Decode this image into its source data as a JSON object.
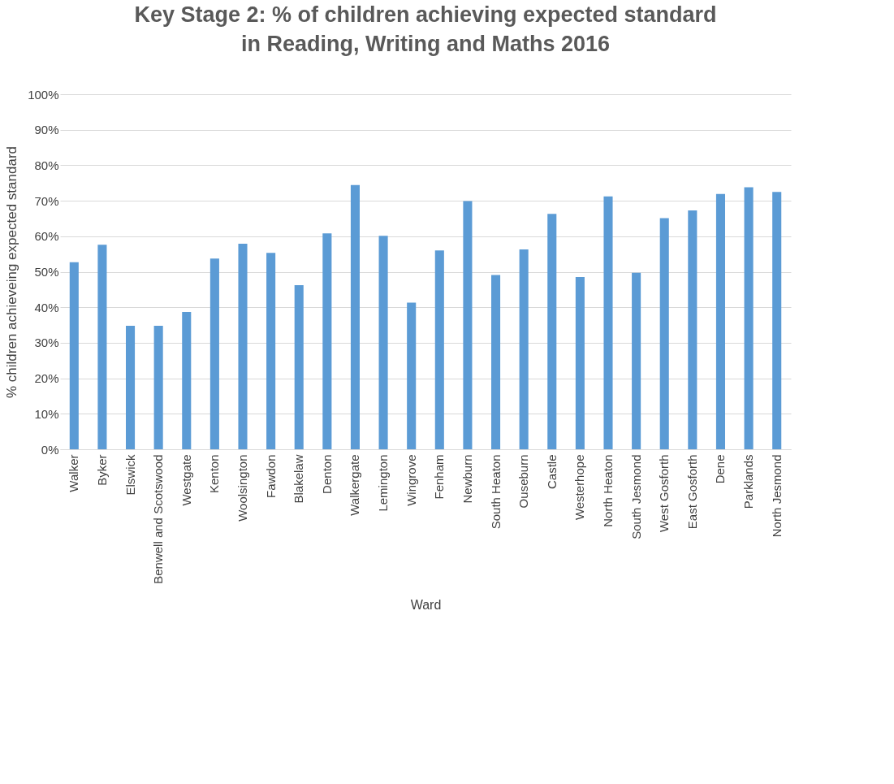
{
  "chart_data": {
    "type": "bar",
    "title": "Key Stage 2: % of children achieving expected standard in Reading, Writing and Maths 2016",
    "xlabel": "Ward",
    "ylabel": "% children achieveing expected standard",
    "categories": [
      "Walker",
      "Byker",
      "Elswick",
      "Benwell and Scotswood",
      "Westgate",
      "Kenton",
      "Woolsington",
      "Fawdon",
      "Blakelaw",
      "Denton",
      "Walkergate",
      "Lemington",
      "Wingrove",
      "Fenham",
      "Newburn",
      "South Heaton",
      "Ouseburn",
      "Castle",
      "Westerhope",
      "North Heaton",
      "South Jesmond",
      "West Gosforth",
      "East Gosforth",
      "Dene",
      "Parklands",
      "North Jesmond"
    ],
    "values": [
      52.7,
      57.6,
      34.8,
      34.8,
      38.7,
      53.7,
      57.9,
      55.3,
      46.2,
      60.8,
      74.4,
      60.1,
      41.3,
      56.0,
      69.9,
      49.1,
      56.3,
      66.3,
      48.5,
      71.2,
      49.7,
      65.1,
      67.3,
      71.9,
      73.8,
      72.5
    ],
    "color": "#5b9bd5",
    "ylim": [
      0,
      100
    ],
    "yticks": [
      {
        "value": 0,
        "label": "0%"
      },
      {
        "value": 10,
        "label": "10%"
      },
      {
        "value": 20,
        "label": "20%"
      },
      {
        "value": 30,
        "label": "30%"
      },
      {
        "value": 40,
        "label": "40%"
      },
      {
        "value": 50,
        "label": "50%"
      },
      {
        "value": 60,
        "label": "60%"
      },
      {
        "value": 70,
        "label": "70%"
      },
      {
        "value": 80,
        "label": "80%"
      },
      {
        "value": 90,
        "label": "90%"
      },
      {
        "value": 100,
        "label": "100%"
      }
    ],
    "grid": "y"
  }
}
